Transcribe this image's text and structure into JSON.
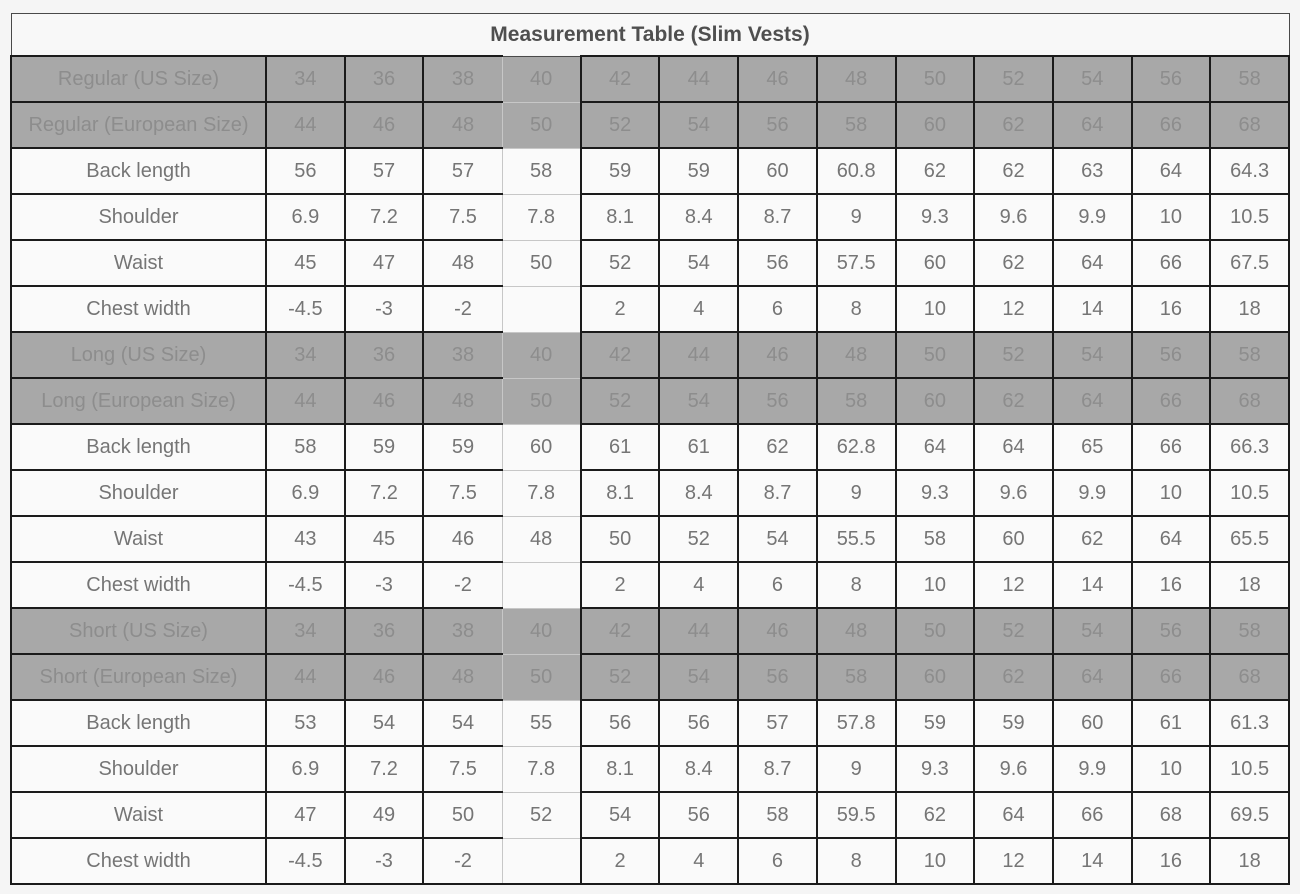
{
  "table": {
    "title": "Measurement Table (Slim Vests)",
    "colors": {
      "header_row_background": "#a8a8a8",
      "header_row_text": "#8d8d8d",
      "data_row_background": "#fafafa",
      "data_row_text": "#757575",
      "title_text": "#4f4f4f",
      "dark_border": "#1b1b1b",
      "light_border": "#c7c7c7",
      "page_background": "#f5f5f5"
    },
    "sections": [
      {
        "us_label": "Regular (US Size)",
        "eu_label": "Regular (European Size)",
        "us_sizes": [
          "34",
          "36",
          "38",
          "40",
          "42",
          "44",
          "46",
          "48",
          "50",
          "52",
          "54",
          "56",
          "58"
        ],
        "eu_sizes": [
          "44",
          "46",
          "48",
          "50",
          "52",
          "54",
          "56",
          "58",
          "60",
          "62",
          "64",
          "66",
          "68"
        ],
        "rows": [
          {
            "label": "Back length",
            "values": [
              "56",
              "57",
              "57",
              "58",
              "59",
              "59",
              "60",
              "60.8",
              "62",
              "62",
              "63",
              "64",
              "64.3"
            ]
          },
          {
            "label": "Shoulder",
            "values": [
              "6.9",
              "7.2",
              "7.5",
              "7.8",
              "8.1",
              "8.4",
              "8.7",
              "9",
              "9.3",
              "9.6",
              "9.9",
              "10",
              "10.5"
            ]
          },
          {
            "label": "Waist",
            "values": [
              "45",
              "47",
              "48",
              "50",
              "52",
              "54",
              "56",
              "57.5",
              "60",
              "62",
              "64",
              "66",
              "67.5"
            ]
          },
          {
            "label": "Chest width",
            "values": [
              "-4.5",
              "-3",
              "-2",
              "",
              "2",
              "4",
              "6",
              "8",
              "10",
              "12",
              "14",
              "16",
              "18"
            ]
          }
        ]
      },
      {
        "us_label": "Long (US Size)",
        "eu_label": "Long (European Size)",
        "us_sizes": [
          "34",
          "36",
          "38",
          "40",
          "42",
          "44",
          "46",
          "48",
          "50",
          "52",
          "54",
          "56",
          "58"
        ],
        "eu_sizes": [
          "44",
          "46",
          "48",
          "50",
          "52",
          "54",
          "56",
          "58",
          "60",
          "62",
          "64",
          "66",
          "68"
        ],
        "rows": [
          {
            "label": "Back length",
            "values": [
              "58",
              "59",
              "59",
              "60",
              "61",
              "61",
              "62",
              "62.8",
              "64",
              "64",
              "65",
              "66",
              "66.3"
            ]
          },
          {
            "label": "Shoulder",
            "values": [
              "6.9",
              "7.2",
              "7.5",
              "7.8",
              "8.1",
              "8.4",
              "8.7",
              "9",
              "9.3",
              "9.6",
              "9.9",
              "10",
              "10.5"
            ]
          },
          {
            "label": "Waist",
            "values": [
              "43",
              "45",
              "46",
              "48",
              "50",
              "52",
              "54",
              "55.5",
              "58",
              "60",
              "62",
              "64",
              "65.5"
            ]
          },
          {
            "label": "Chest width",
            "values": [
              "-4.5",
              "-3",
              "-2",
              "",
              "2",
              "4",
              "6",
              "8",
              "10",
              "12",
              "14",
              "16",
              "18"
            ]
          }
        ]
      },
      {
        "us_label": "Short (US Size)",
        "eu_label": "Short (European Size)",
        "us_sizes": [
          "34",
          "36",
          "38",
          "40",
          "42",
          "44",
          "46",
          "48",
          "50",
          "52",
          "54",
          "56",
          "58"
        ],
        "eu_sizes": [
          "44",
          "46",
          "48",
          "50",
          "52",
          "54",
          "56",
          "58",
          "60",
          "62",
          "64",
          "66",
          "68"
        ],
        "rows": [
          {
            "label": "Back length",
            "values": [
              "53",
              "54",
              "54",
              "55",
              "56",
              "56",
              "57",
              "57.8",
              "59",
              "59",
              "60",
              "61",
              "61.3"
            ]
          },
          {
            "label": "Shoulder",
            "values": [
              "6.9",
              "7.2",
              "7.5",
              "7.8",
              "8.1",
              "8.4",
              "8.7",
              "9",
              "9.3",
              "9.6",
              "9.9",
              "10",
              "10.5"
            ]
          },
          {
            "label": "Waist",
            "values": [
              "47",
              "49",
              "50",
              "52",
              "54",
              "56",
              "58",
              "59.5",
              "62",
              "64",
              "66",
              "68",
              "69.5"
            ]
          },
          {
            "label": "Chest width",
            "values": [
              "-4.5",
              "-3",
              "-2",
              "",
              "2",
              "4",
              "6",
              "8",
              "10",
              "12",
              "14",
              "16",
              "18"
            ]
          }
        ]
      }
    ]
  }
}
